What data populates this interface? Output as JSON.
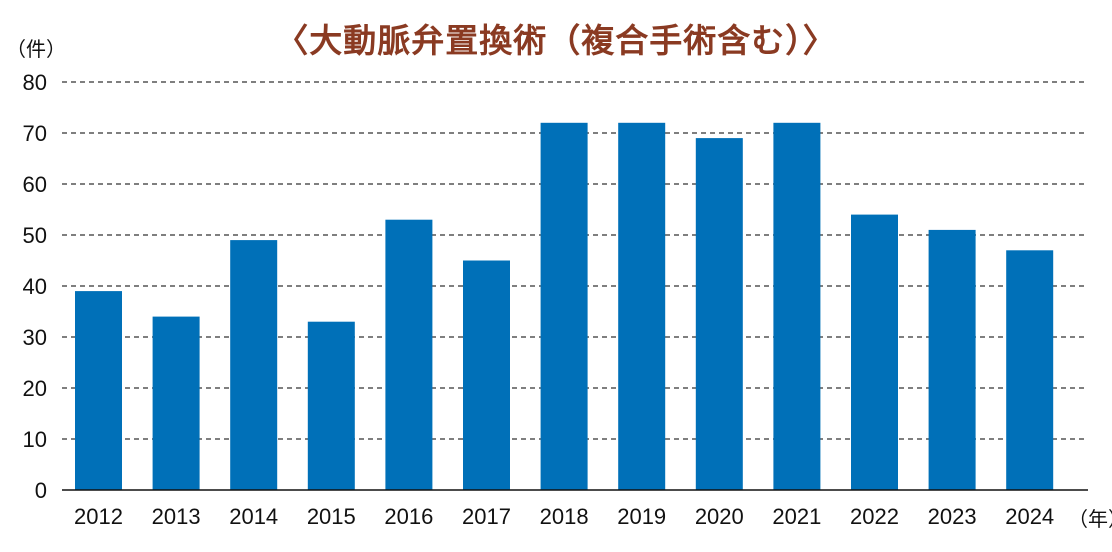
{
  "chart_data": {
    "type": "bar",
    "title": "〈大動脈弁置換術（複合手術含む）〉",
    "ylabel": "（件）",
    "xlabel": "（年）",
    "categories": [
      "2012",
      "2013",
      "2014",
      "2015",
      "2016",
      "2017",
      "2018",
      "2019",
      "2020",
      "2021",
      "2022",
      "2023",
      "2024"
    ],
    "values": [
      39,
      34,
      49,
      33,
      53,
      45,
      72,
      72,
      69,
      72,
      54,
      51,
      47
    ],
    "ylim": [
      0,
      80
    ],
    "yticks": [
      0,
      10,
      20,
      30,
      40,
      50,
      60,
      70,
      80
    ],
    "grid": true,
    "grid_style": "dashed",
    "bar_color": "#0070b8",
    "title_color": "#8a3a22"
  }
}
